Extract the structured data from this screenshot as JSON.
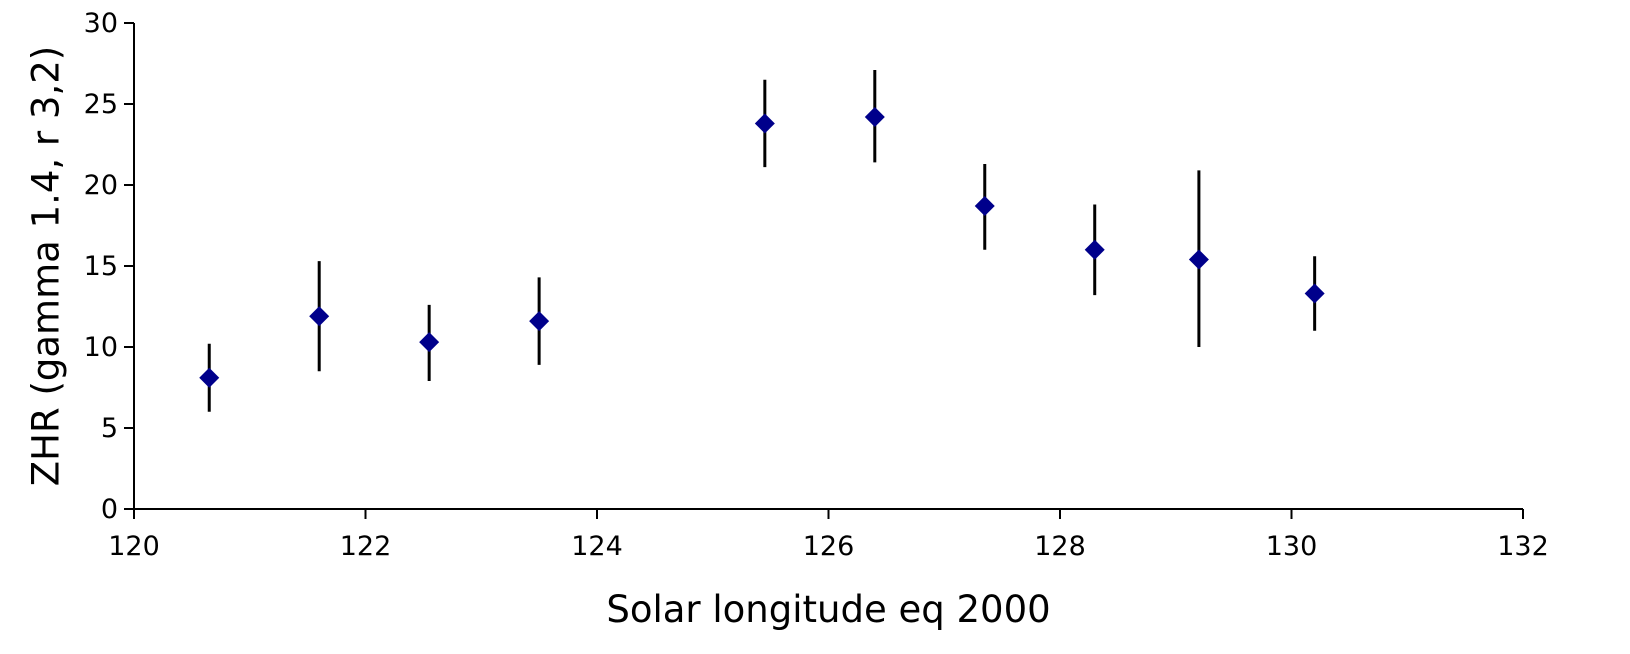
{
  "chart_data": {
    "type": "scatter",
    "title": "",
    "xlabel": "Solar longitude eq 2000",
    "ylabel": "ZHR (gamma 1.4, r 3,2)",
    "xlim": [
      120,
      132
    ],
    "ylim": [
      0,
      30
    ],
    "x_ticks": [
      120,
      122,
      124,
      126,
      128,
      130,
      132
    ],
    "y_ticks": [
      0,
      5,
      10,
      15,
      20,
      25,
      30
    ],
    "grid": false,
    "legend": "none",
    "marker": "diamond",
    "marker_color": "#00008B",
    "errorbar_color": "#000000",
    "series": [
      {
        "points": [
          {
            "x": 120.65,
            "y": 8.1,
            "err_low": 6.0,
            "err_high": 10.2
          },
          {
            "x": 121.6,
            "y": 11.9,
            "err_low": 8.5,
            "err_high": 15.3
          },
          {
            "x": 122.55,
            "y": 10.3,
            "err_low": 7.9,
            "err_high": 12.6
          },
          {
            "x": 123.5,
            "y": 11.6,
            "err_low": 8.9,
            "err_high": 14.3
          },
          {
            "x": 125.45,
            "y": 23.8,
            "err_low": 21.1,
            "err_high": 26.5
          },
          {
            "x": 126.4,
            "y": 24.2,
            "err_low": 21.4,
            "err_high": 27.1
          },
          {
            "x": 127.35,
            "y": 18.7,
            "err_low": 16.0,
            "err_high": 21.3
          },
          {
            "x": 128.3,
            "y": 16.0,
            "err_low": 13.2,
            "err_high": 18.8
          },
          {
            "x": 129.2,
            "y": 15.4,
            "err_low": 10.0,
            "err_high": 20.9
          },
          {
            "x": 130.2,
            "y": 13.3,
            "err_low": 11.0,
            "err_high": 15.6
          }
        ]
      }
    ]
  }
}
